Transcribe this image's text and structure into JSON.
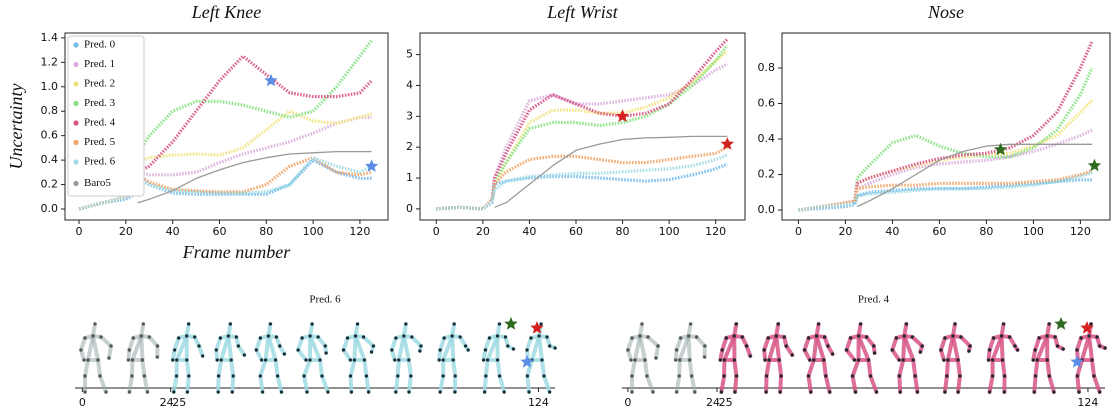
{
  "chart_data": [
    {
      "type": "line",
      "title": "Left Knee",
      "y_label": "Uncertainty",
      "x_label": "Frame number",
      "legend": "upper left",
      "x": [
        0,
        10,
        20,
        24,
        25,
        30,
        40,
        50,
        60,
        70,
        80,
        90,
        100,
        110,
        120,
        125
      ],
      "xlim": [
        -6,
        132
      ],
      "ylim": [
        -0.09,
        1.44
      ],
      "xticks": [
        0,
        20,
        40,
        60,
        80,
        100,
        120
      ],
      "yticks": [
        {
          "value": 0,
          "label": "0.0"
        },
        {
          "value": 0.2,
          "label": "0.2"
        },
        {
          "value": 0.4,
          "label": "0.4"
        },
        {
          "value": 0.6,
          "label": "0.6"
        },
        {
          "value": 0.8,
          "label": "0.8"
        },
        {
          "value": 1.0,
          "label": "1.0"
        },
        {
          "value": 1.2,
          "label": "1.2"
        },
        {
          "value": 1.4,
          "label": "1.4"
        }
      ],
      "series": [
        {
          "name": "Pred. 0",
          "color": "#74b9ec",
          "values": [
            0,
            0.05,
            0.08,
            0.12,
            0.3,
            0.2,
            0.13,
            0.12,
            0.12,
            0.12,
            0.12,
            0.2,
            0.4,
            0.3,
            0.25,
            0.25
          ]
        },
        {
          "name": "Pred. 1",
          "color": "#dbaede",
          "values": [
            0,
            0.05,
            0.1,
            0.15,
            0.3,
            0.28,
            0.28,
            0.3,
            0.38,
            0.45,
            0.5,
            0.55,
            0.62,
            0.7,
            0.75,
            0.75
          ]
        },
        {
          "name": "Pred. 2",
          "color": "#f2e27a",
          "values": [
            0,
            0.05,
            0.1,
            0.15,
            0.38,
            0.42,
            0.44,
            0.45,
            0.44,
            0.5,
            0.65,
            0.8,
            0.72,
            0.7,
            0.75,
            0.78
          ]
        },
        {
          "name": "Pred. 3",
          "color": "#86e27f",
          "values": [
            0,
            0.05,
            0.1,
            0.15,
            0.45,
            0.6,
            0.8,
            0.88,
            0.88,
            0.85,
            0.8,
            0.75,
            0.8,
            1.0,
            1.25,
            1.38
          ]
        },
        {
          "name": "Pred. 4",
          "color": "#d85585",
          "values": [
            0,
            0.05,
            0.1,
            0.15,
            0.3,
            0.35,
            0.55,
            0.8,
            1.05,
            1.25,
            1.1,
            0.95,
            0.92,
            0.92,
            0.95,
            1.05
          ]
        },
        {
          "name": "Pred. 5",
          "color": "#f2a466",
          "values": [
            0,
            0.05,
            0.1,
            0.15,
            0.28,
            0.22,
            0.16,
            0.15,
            0.14,
            0.14,
            0.2,
            0.35,
            0.42,
            0.3,
            0.28,
            0.3
          ]
        },
        {
          "name": "Pred. 6",
          "color": "#9fdbe3",
          "values": [
            0,
            0.05,
            0.1,
            0.15,
            0.25,
            0.2,
            0.15,
            0.14,
            0.13,
            0.13,
            0.14,
            0.2,
            0.42,
            0.35,
            0.3,
            0.35
          ]
        },
        {
          "name": "Baro5",
          "color": "#999999",
          "values": [
            null,
            null,
            null,
            null,
            0.05,
            0.08,
            0.15,
            0.25,
            0.32,
            0.38,
            0.42,
            0.45,
            0.46,
            0.47,
            0.47,
            0.47
          ]
        }
      ],
      "markers": [
        {
          "x": 82,
          "y": 1.05,
          "color": "#5b8ee6"
        },
        {
          "x": 125,
          "y": 0.35,
          "color": "#5b8ee6"
        }
      ]
    },
    {
      "type": "line",
      "title": "Left Wrist",
      "x": [
        0,
        10,
        20,
        24,
        25,
        30,
        40,
        50,
        60,
        70,
        80,
        90,
        100,
        110,
        120,
        125
      ],
      "xlim": [
        -7,
        132.6
      ],
      "ylim": [
        -0.36,
        5.7
      ],
      "xticks": [
        0,
        20,
        40,
        60,
        80,
        100,
        120
      ],
      "yticks": [
        0,
        1,
        2,
        3,
        4,
        5
      ],
      "series": [
        {
          "name": "Pred. 0",
          "color": "#74b9ec",
          "values": [
            0,
            0.05,
            0,
            0.2,
            0.8,
            0.9,
            1,
            1.05,
            1.05,
            1.0,
            0.95,
            0.9,
            0.95,
            1.1,
            1.3,
            1.45
          ]
        },
        {
          "name": "Pred. 1",
          "color": "#dbaede",
          "values": [
            0,
            0.05,
            0,
            0.3,
            1.0,
            2,
            3.5,
            3.7,
            3.4,
            3.4,
            3.5,
            3.6,
            3.7,
            4.0,
            4.5,
            4.7
          ]
        },
        {
          "name": "Pred. 2",
          "color": "#f2e27a",
          "values": [
            0,
            0.05,
            0,
            0.3,
            0.8,
            1.5,
            2.8,
            3.2,
            3.2,
            3.1,
            3.1,
            3.3,
            3.6,
            4.1,
            4.8,
            5.1
          ]
        },
        {
          "name": "Pred. 3",
          "color": "#86e27f",
          "values": [
            0,
            0.05,
            0,
            0.3,
            0.9,
            1.5,
            2.6,
            2.8,
            2.8,
            2.7,
            2.8,
            3.0,
            3.4,
            4.0,
            4.8,
            5.3
          ]
        },
        {
          "name": "Pred. 4",
          "color": "#d85585",
          "values": [
            0,
            0.05,
            0,
            0.3,
            1.0,
            1.8,
            3.2,
            3.7,
            3.4,
            3.1,
            3.0,
            3.1,
            3.4,
            4.2,
            5.1,
            5.5
          ]
        },
        {
          "name": "Pred. 5",
          "color": "#f2a466",
          "values": [
            0,
            0.05,
            0,
            0.3,
            0.8,
            1.2,
            1.6,
            1.7,
            1.7,
            1.6,
            1.5,
            1.5,
            1.6,
            1.7,
            1.8,
            2.0
          ]
        },
        {
          "name": "Pred. 6",
          "color": "#9fdbe3",
          "values": [
            0,
            0.05,
            0,
            0.25,
            0.6,
            0.9,
            1.05,
            1.1,
            1.15,
            1.15,
            1.2,
            1.25,
            1.3,
            1.4,
            1.6,
            1.75
          ]
        },
        {
          "name": "Baro5",
          "color": "#999999",
          "values": [
            null,
            null,
            null,
            null,
            0.05,
            0.2,
            0.8,
            1.4,
            1.9,
            2.1,
            2.25,
            2.3,
            2.32,
            2.35,
            2.35,
            2.35
          ]
        }
      ],
      "markers": [
        {
          "x": 80,
          "y": 3.0,
          "color": "#d42020"
        },
        {
          "x": 125,
          "y": 2.1,
          "color": "#d42020"
        }
      ]
    },
    {
      "type": "line",
      "title": "Nose",
      "x": [
        0,
        10,
        20,
        24,
        25,
        30,
        40,
        50,
        60,
        70,
        80,
        90,
        100,
        110,
        120,
        125
      ],
      "xlim": [
        -7,
        132.6
      ],
      "ylim": [
        -0.056,
        0.997
      ],
      "xticks": [
        0,
        20,
        40,
        60,
        80,
        100,
        120
      ],
      "yticks": [
        {
          "value": 0,
          "label": "0.0"
        },
        {
          "value": 0.2,
          "label": "0.2"
        },
        {
          "value": 0.4,
          "label": "0.4"
        },
        {
          "value": 0.6,
          "label": "0.6"
        },
        {
          "value": 0.8,
          "label": "0.8"
        }
      ],
      "series": [
        {
          "name": "Pred. 0",
          "color": "#74b9ec",
          "values": [
            0,
            0.01,
            0.02,
            0.03,
            0.08,
            0.1,
            0.11,
            0.12,
            0.12,
            0.12,
            0.13,
            0.14,
            0.15,
            0.16,
            0.17,
            0.17
          ]
        },
        {
          "name": "Pred. 1",
          "color": "#dbaede",
          "values": [
            0,
            0.02,
            0.04,
            0.05,
            0.12,
            0.15,
            0.2,
            0.24,
            0.26,
            0.27,
            0.28,
            0.3,
            0.33,
            0.37,
            0.42,
            0.45
          ]
        },
        {
          "name": "Pred. 2",
          "color": "#f2e27a",
          "values": [
            0,
            0.02,
            0.04,
            0.05,
            0.15,
            0.18,
            0.22,
            0.25,
            0.28,
            0.3,
            0.31,
            0.32,
            0.36,
            0.42,
            0.55,
            0.62
          ]
        },
        {
          "name": "Pred. 3",
          "color": "#86e27f",
          "values": [
            0,
            0.02,
            0.04,
            0.05,
            0.18,
            0.25,
            0.38,
            0.42,
            0.36,
            0.32,
            0.3,
            0.3,
            0.35,
            0.45,
            0.65,
            0.8
          ]
        },
        {
          "name": "Pred. 4",
          "color": "#d85585",
          "values": [
            0,
            0.02,
            0.04,
            0.05,
            0.15,
            0.18,
            0.22,
            0.26,
            0.29,
            0.31,
            0.32,
            0.35,
            0.42,
            0.55,
            0.8,
            0.95
          ]
        },
        {
          "name": "Pred. 5",
          "color": "#f2a466",
          "values": [
            0,
            0.02,
            0.04,
            0.05,
            0.12,
            0.13,
            0.14,
            0.14,
            0.15,
            0.15,
            0.15,
            0.15,
            0.16,
            0.17,
            0.2,
            0.22
          ]
        },
        {
          "name": "Pred. 6",
          "color": "#9fdbe3",
          "values": [
            0,
            0.02,
            0.03,
            0.04,
            0.08,
            0.09,
            0.1,
            0.11,
            0.12,
            0.12,
            0.12,
            0.13,
            0.14,
            0.16,
            0.19,
            0.21
          ]
        },
        {
          "name": "Baro5",
          "color": "#999999",
          "values": [
            null,
            null,
            null,
            null,
            0.02,
            0.05,
            0.12,
            0.2,
            0.28,
            0.33,
            0.36,
            0.37,
            0.37,
            0.37,
            0.37,
            0.37
          ]
        }
      ],
      "markers": [
        {
          "x": 86,
          "y": 0.34,
          "color": "#2e6b1e"
        },
        {
          "x": 126,
          "y": 0.25,
          "color": "#2e6b1e"
        }
      ]
    },
    {
      "type": "pose",
      "title": "Pred. 6",
      "color": "#9fdbe3",
      "xlim": [
        -2,
        128.5
      ],
      "xticks": [
        0,
        24,
        25,
        124
      ]
    },
    {
      "type": "pose",
      "title": "Pred. 4",
      "color": "#d85585",
      "xlim": [
        -1.6,
        128.6
      ],
      "xticks": [
        0,
        24,
        25,
        124
      ]
    }
  ]
}
